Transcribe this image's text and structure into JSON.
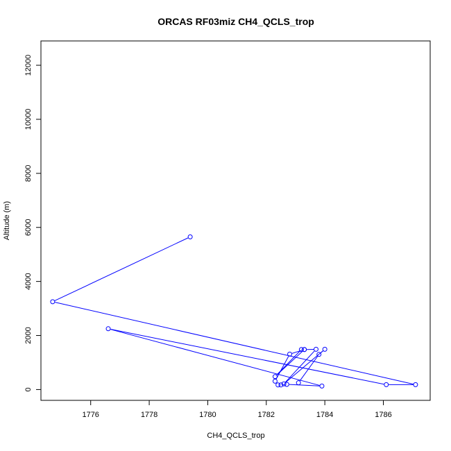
{
  "chart_data": {
    "type": "line",
    "title": "ORCAS RF03miz CH4_QCLS_trop",
    "xlabel": "CH4_QCLS_trop",
    "ylabel": "Altitude (m)",
    "xlim": [
      1774.3,
      1787.6
    ],
    "ylim": [
      -400,
      12900
    ],
    "xticks": [
      1776,
      1778,
      1780,
      1782,
      1784,
      1786
    ],
    "yticks": [
      0,
      2000,
      4000,
      6000,
      8000,
      10000,
      12000
    ],
    "grid": false,
    "legend": "none",
    "series": [
      {
        "color": "#0000ff",
        "markers": "open-circle",
        "points": [
          {
            "x": 1779.4,
            "y": 5650
          },
          {
            "x": 1774.7,
            "y": 3250
          },
          {
            "x": 1787.1,
            "y": 180
          },
          {
            "x": 1786.1,
            "y": 180
          },
          {
            "x": 1776.6,
            "y": 2250
          },
          {
            "x": 1783.9,
            "y": 130
          },
          {
            "x": 1782.7,
            "y": 190
          },
          {
            "x": 1782.5,
            "y": 170
          },
          {
            "x": 1782.4,
            "y": 170
          },
          {
            "x": 1782.3,
            "y": 310
          },
          {
            "x": 1782.8,
            "y": 1310
          },
          {
            "x": 1783.3,
            "y": 1480
          },
          {
            "x": 1783.2,
            "y": 1480
          },
          {
            "x": 1782.3,
            "y": 480
          },
          {
            "x": 1783.3,
            "y": 1480
          },
          {
            "x": 1783.7,
            "y": 1490
          },
          {
            "x": 1782.6,
            "y": 210
          },
          {
            "x": 1784.0,
            "y": 1490
          },
          {
            "x": 1783.8,
            "y": 1300
          },
          {
            "x": 1783.1,
            "y": 250
          }
        ]
      }
    ]
  }
}
